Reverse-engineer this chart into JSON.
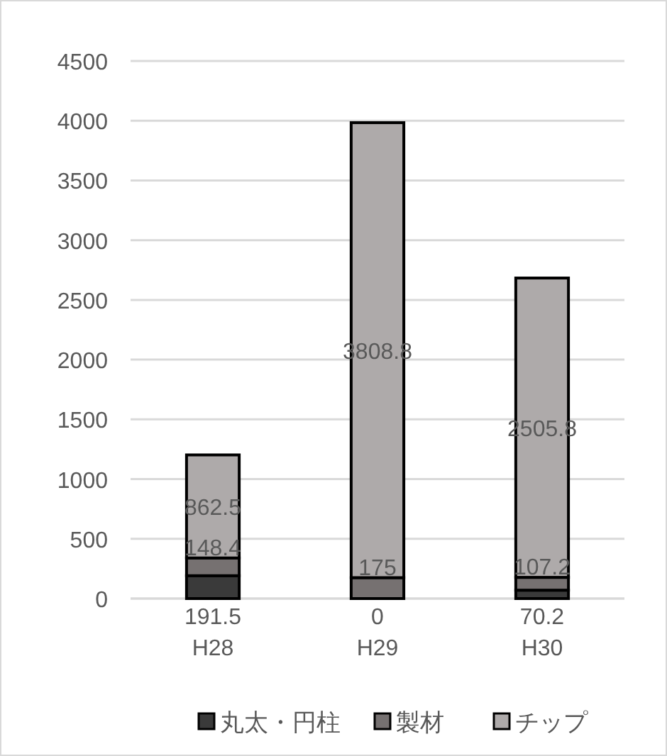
{
  "chart_data": {
    "type": "bar",
    "stacked": true,
    "categories": [
      "H28",
      "H29",
      "H30"
    ],
    "series": [
      {
        "name": "丸太・円柱",
        "color": "#3a3a3a",
        "values": [
          191.5,
          0,
          70.2
        ]
      },
      {
        "name": "製材",
        "color": "#767171",
        "values": [
          148.4,
          175,
          107.2
        ]
      },
      {
        "name": "チップ",
        "color": "#aeaaaa",
        "values": [
          862.5,
          3808.8,
          2505.8
        ]
      }
    ],
    "ylim": [
      0,
      4500
    ],
    "yticks": [
      0,
      500,
      1000,
      1500,
      2000,
      2500,
      3000,
      3500,
      4000,
      4500
    ],
    "grid": "y",
    "legend": "bottom",
    "data_labels": true
  }
}
